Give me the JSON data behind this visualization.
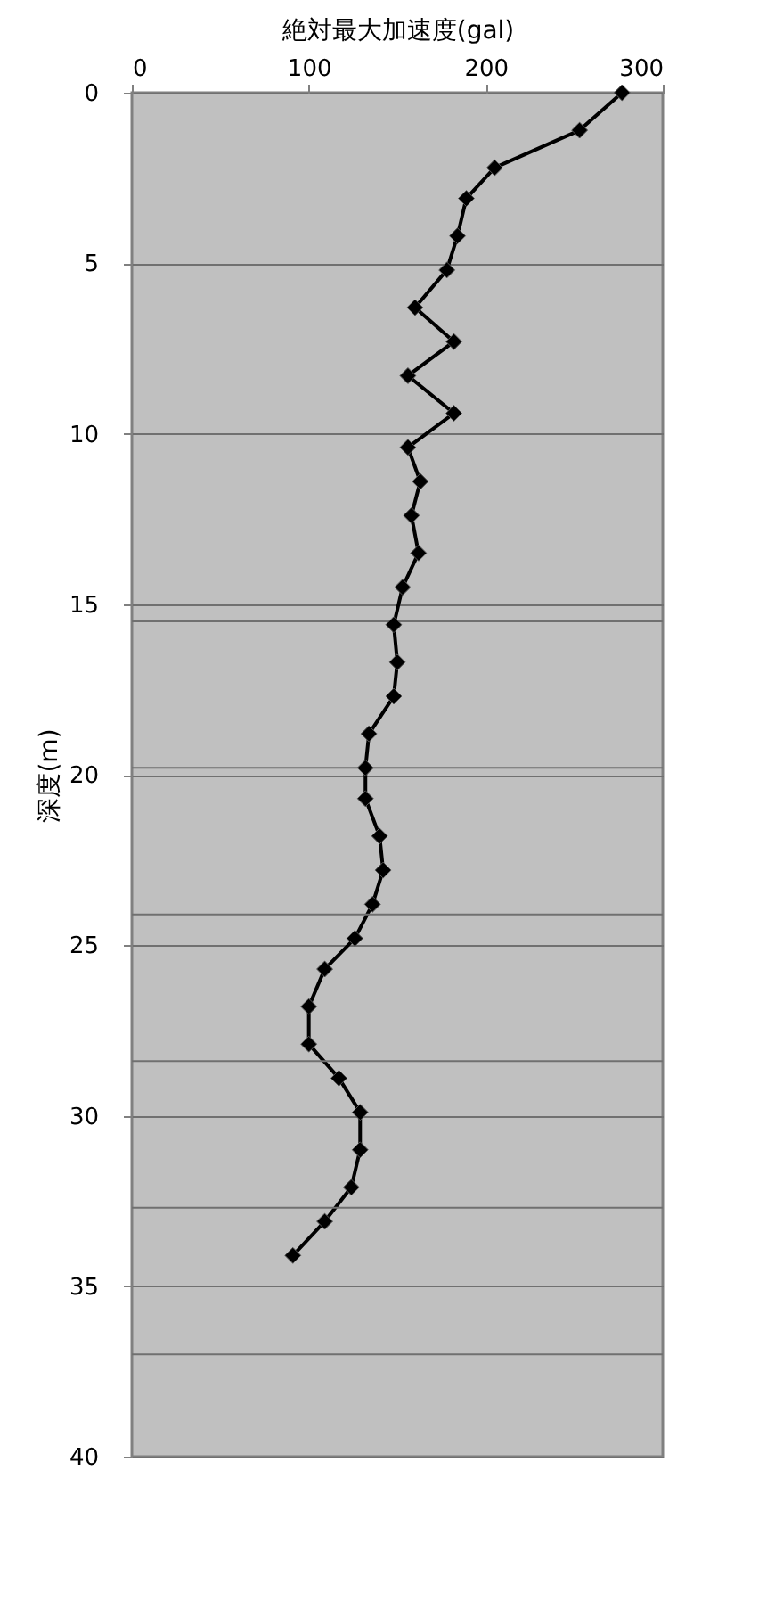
{
  "chart_data": {
    "type": "line",
    "xlabel": "絶対最大加速度(gal)",
    "ylabel": "深度(m)",
    "xlim": [
      0,
      300
    ],
    "xticks": [
      0,
      100,
      200,
      300
    ],
    "ylim": [
      40,
      0
    ],
    "yticks": [
      0,
      5,
      10,
      15,
      20,
      25,
      30,
      35,
      40
    ],
    "grid": "y",
    "marker": "diamond",
    "line_style": "solid",
    "ref_lines": [
      {
        "axis": "y",
        "value": 15.5,
        "label": null
      },
      {
        "axis": "y",
        "value": 19.8,
        "label": null
      },
      {
        "axis": "y",
        "value": 24.1,
        "label": null
      },
      {
        "axis": "y",
        "value": 28.4,
        "label": null
      },
      {
        "axis": "y",
        "value": 32.7,
        "label": null
      },
      {
        "axis": "y",
        "value": 37.0,
        "label": null
      }
    ],
    "series": [
      {
        "color": "#000000",
        "x": [
          277,
          253,
          205,
          189,
          184,
          178,
          160,
          182,
          156,
          182,
          156,
          163,
          158,
          162,
          153,
          148,
          150,
          148,
          134,
          132,
          132,
          140,
          142,
          136,
          126,
          109,
          100,
          100,
          117,
          129,
          129,
          124,
          109,
          91
        ],
        "values": [
          0,
          1.1,
          2.2,
          3.1,
          4.2,
          5.2,
          6.3,
          7.3,
          8.3,
          9.4,
          10.4,
          11.4,
          12.4,
          13.5,
          14.5,
          15.6,
          16.7,
          17.7,
          18.8,
          19.8,
          20.7,
          21.8,
          22.8,
          23.8,
          24.8,
          25.7,
          26.8,
          27.9,
          28.9,
          29.9,
          31.0,
          32.1,
          33.1,
          34.1
        ]
      }
    ]
  }
}
